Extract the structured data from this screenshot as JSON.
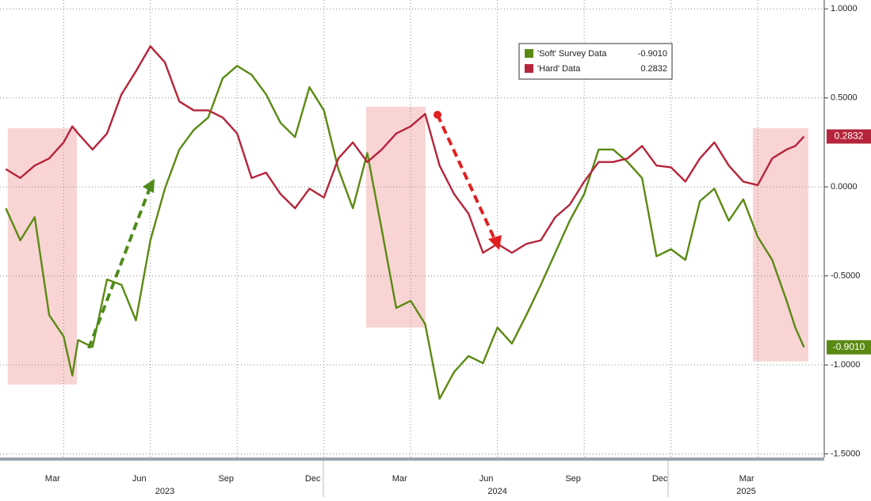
{
  "chart_data": {
    "type": "line",
    "x": [
      0,
      0.5,
      1,
      1.5,
      2,
      2.3,
      2.5,
      3,
      3.5,
      4,
      4.5,
      5,
      5.5,
      6,
      6.5,
      7,
      7.5,
      8,
      8.5,
      9,
      9.5,
      10,
      10.5,
      11,
      11.5,
      12,
      12.5,
      13,
      13.5,
      14,
      14.5,
      15,
      15.5,
      16,
      16.5,
      17,
      17.5,
      18,
      18.5,
      19,
      19.5,
      20,
      20.5,
      21,
      21.5,
      22,
      22.5,
      23,
      23.5,
      24,
      24.5,
      25,
      25.5,
      26,
      26.5,
      27,
      27.3,
      27.6
    ],
    "series": [
      {
        "name": "'Soft' Survey Data",
        "color": "#5a8a12",
        "last_label": "-0.9010",
        "values": [
          -0.12,
          -0.3,
          -0.17,
          -0.72,
          -0.84,
          -1.06,
          -0.86,
          -0.9,
          -0.52,
          -0.55,
          -0.75,
          -0.3,
          -0.01,
          0.21,
          0.32,
          0.39,
          0.61,
          0.68,
          0.63,
          0.52,
          0.36,
          0.28,
          0.56,
          0.43,
          0.1,
          -0.12,
          0.19,
          -0.24,
          -0.68,
          -0.64,
          -0.77,
          -1.19,
          -1.04,
          -0.95,
          -0.99,
          -0.79,
          -0.88,
          -0.72,
          -0.55,
          -0.37,
          -0.19,
          -0.04,
          0.21,
          0.21,
          0.14,
          0.05,
          -0.39,
          -0.35,
          -0.41,
          -0.08,
          -0.01,
          -0.19,
          -0.07,
          -0.28,
          -0.41,
          -0.64,
          -0.79,
          -0.901
        ]
      },
      {
        "name": "'Hard' Data",
        "color": "#b5243a",
        "last_label": "0.2832",
        "values": [
          0.1,
          0.05,
          0.12,
          0.16,
          0.25,
          0.34,
          0.3,
          0.21,
          0.3,
          0.52,
          0.65,
          0.79,
          0.7,
          0.48,
          0.43,
          0.43,
          0.39,
          0.3,
          0.05,
          0.08,
          -0.04,
          -0.12,
          -0.01,
          -0.06,
          0.16,
          0.25,
          0.14,
          0.21,
          0.3,
          0.34,
          0.41,
          0.12,
          -0.04,
          -0.15,
          -0.37,
          -0.32,
          -0.37,
          -0.32,
          -0.3,
          -0.17,
          -0.1,
          0.03,
          0.14,
          0.14,
          0.16,
          0.23,
          0.12,
          0.11,
          0.03,
          0.16,
          0.25,
          0.12,
          0.03,
          0.01,
          0.16,
          0.21,
          0.23,
          0.2832
        ]
      }
    ],
    "xlim": [
      -0.2,
      28.3
    ],
    "xticks": [
      {
        "value": 2,
        "label": "Mar"
      },
      {
        "value": 5,
        "label": "Jun"
      },
      {
        "value": 8,
        "label": "Sep"
      },
      {
        "value": 11,
        "label": "Dec"
      },
      {
        "value": 14,
        "label": "Mar"
      },
      {
        "value": 17,
        "label": "Jun"
      },
      {
        "value": 20,
        "label": "Sep"
      },
      {
        "value": 23,
        "label": "Dec"
      },
      {
        "value": 26,
        "label": "Mar"
      }
    ],
    "year_labels": [
      {
        "value": 5.5,
        "label": "2023"
      },
      {
        "value": 17,
        "label": "2024"
      },
      {
        "value": 25.6,
        "label": "2025"
      }
    ],
    "ylim": [
      -1.52,
      1.05
    ],
    "yticks": [
      {
        "value": 1,
        "label": "1.0000"
      },
      {
        "value": 0.5,
        "label": "0.5000"
      },
      {
        "value": 0,
        "label": "0.0000"
      },
      {
        "value": -0.5,
        "label": "-0.5000"
      },
      {
        "value": -1,
        "label": "-1.0000"
      },
      {
        "value": -1.5,
        "label": "-1.5000"
      }
    ],
    "grid": true,
    "shaded_regions": [
      {
        "x": [
          0.07,
          2.46
        ],
        "y": [
          -1.11,
          0.33
        ]
      },
      {
        "x": [
          12.46,
          14.51
        ],
        "y": [
          -0.79,
          0.45
        ]
      },
      {
        "x": [
          25.83,
          27.75
        ],
        "y": [
          -0.98,
          0.33
        ]
      }
    ]
  }
}
